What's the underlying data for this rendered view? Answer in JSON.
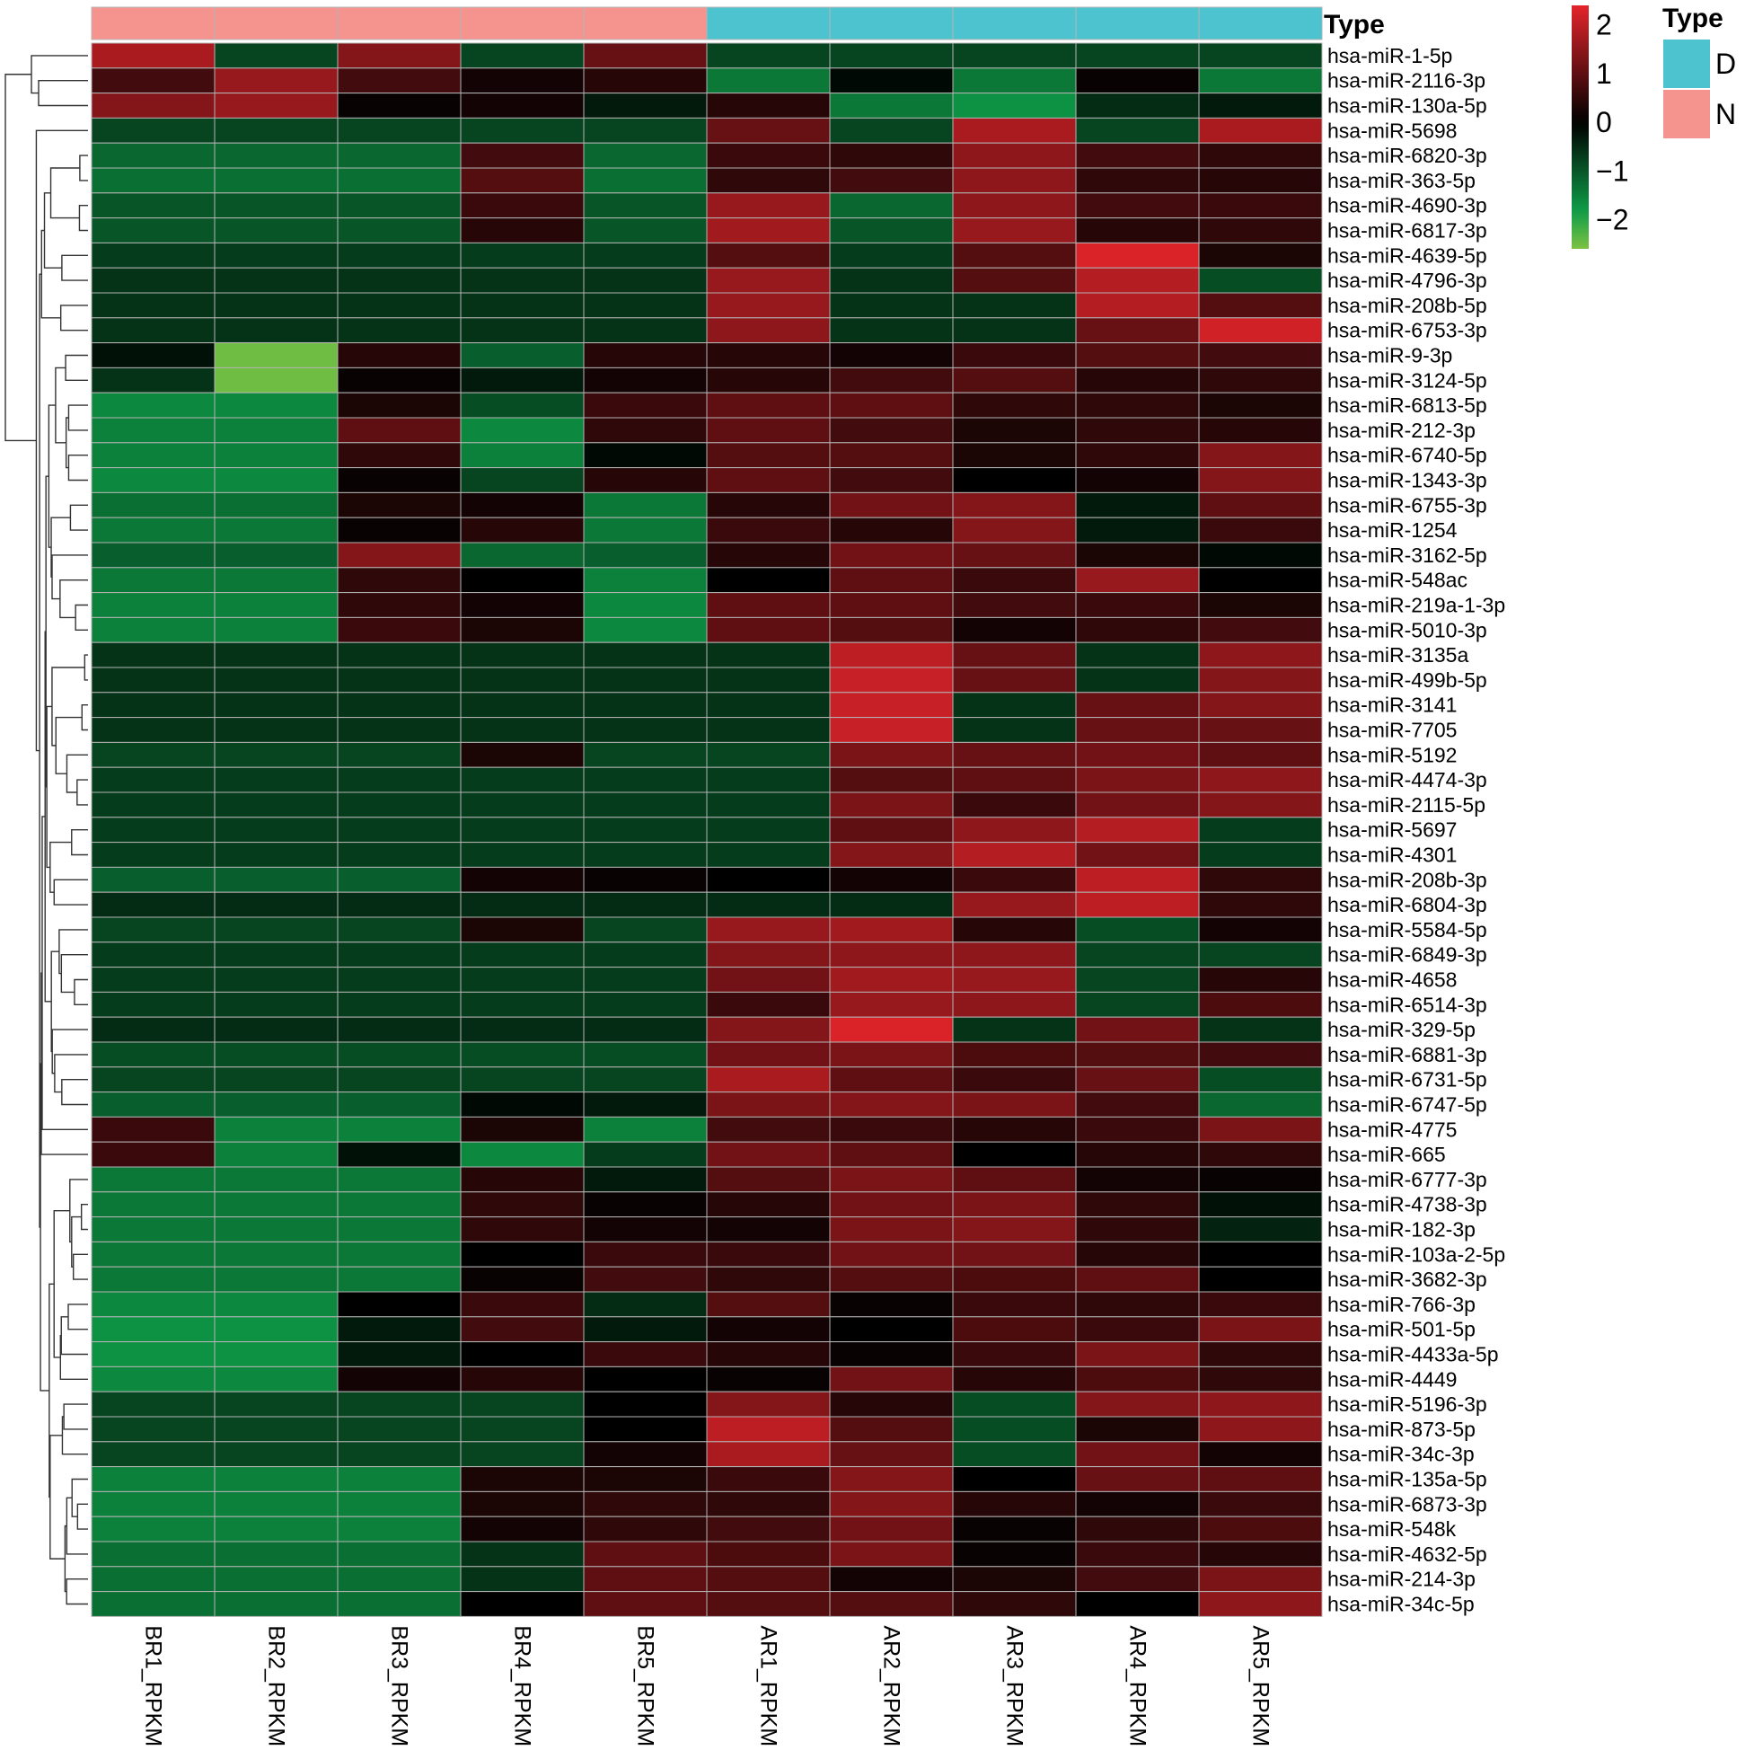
{
  "chart_data": {
    "type": "heatmap",
    "title": "",
    "columns": [
      "BR1_RPKM",
      "BR2_RPKM",
      "BR3_RPKM",
      "BR4_RPKM",
      "BR5_RPKM",
      "AR1_RPKM",
      "AR2_RPKM",
      "AR3_RPKM",
      "AR4_RPKM",
      "AR5_RPKM"
    ],
    "column_types": [
      "N",
      "N",
      "N",
      "N",
      "N",
      "D",
      "D",
      "D",
      "D",
      "D"
    ],
    "rows": [
      "hsa-miR-1-5p",
      "hsa-miR-2116-3p",
      "hsa-miR-130a-5p",
      "hsa-miR-5698",
      "hsa-miR-6820-3p",
      "hsa-miR-363-5p",
      "hsa-miR-4690-3p",
      "hsa-miR-6817-3p",
      "hsa-miR-4639-5p",
      "hsa-miR-4796-3p",
      "hsa-miR-208b-5p",
      "hsa-miR-6753-3p",
      "hsa-miR-9-3p",
      "hsa-miR-3124-5p",
      "hsa-miR-6813-5p",
      "hsa-miR-212-3p",
      "hsa-miR-6740-5p",
      "hsa-miR-1343-3p",
      "hsa-miR-6755-3p",
      "hsa-miR-1254",
      "hsa-miR-3162-5p",
      "hsa-miR-548ac",
      "hsa-miR-219a-1-3p",
      "hsa-miR-5010-3p",
      "hsa-miR-3135a",
      "hsa-miR-499b-5p",
      "hsa-miR-3141",
      "hsa-miR-7705",
      "hsa-miR-5192",
      "hsa-miR-4474-3p",
      "hsa-miR-2115-5p",
      "hsa-miR-5697",
      "hsa-miR-4301",
      "hsa-miR-208b-3p",
      "hsa-miR-6804-3p",
      "hsa-miR-5584-5p",
      "hsa-miR-6849-3p",
      "hsa-miR-4658",
      "hsa-miR-6514-3p",
      "hsa-miR-329-5p",
      "hsa-miR-6881-3p",
      "hsa-miR-6731-5p",
      "hsa-miR-6747-5p",
      "hsa-miR-4775",
      "hsa-miR-665",
      "hsa-miR-6777-3p",
      "hsa-miR-4738-3p",
      "hsa-miR-182-3p",
      "hsa-miR-103a-2-5p",
      "hsa-miR-3682-3p",
      "hsa-miR-766-3p",
      "hsa-miR-501-5p",
      "hsa-miR-4433a-5p",
      "hsa-miR-4449",
      "hsa-miR-5196-3p",
      "hsa-miR-873-5p",
      "hsa-miR-34c-3p",
      "hsa-miR-135a-5p",
      "hsa-miR-6873-3p",
      "hsa-miR-548k",
      "hsa-miR-4632-5p",
      "hsa-miR-214-3p",
      "hsa-miR-34c-5p"
    ],
    "values": [
      [
        1.8,
        -0.8,
        1.4,
        -0.8,
        1.1,
        -0.8,
        -0.8,
        -0.8,
        -0.8,
        -0.8
      ],
      [
        0.7,
        1.6,
        0.7,
        0.2,
        0.4,
        -1.4,
        -0.1,
        -1.4,
        0.1,
        -1.4
      ],
      [
        1.4,
        1.6,
        0.1,
        0.2,
        -0.3,
        0.4,
        -1.4,
        -1.7,
        -0.5,
        -0.3
      ],
      [
        -0.8,
        -0.8,
        -0.8,
        -0.8,
        -0.8,
        1.1,
        -0.8,
        1.8,
        -0.8,
        1.8
      ],
      [
        -1.2,
        -1.2,
        -1.2,
        0.7,
        -1.2,
        0.6,
        0.5,
        1.5,
        0.7,
        0.5
      ],
      [
        -1.3,
        -1.3,
        -1.3,
        0.9,
        -1.3,
        0.5,
        0.7,
        1.5,
        0.5,
        0.4
      ],
      [
        -1.0,
        -1.0,
        -1.0,
        0.6,
        -1.0,
        1.6,
        -1.2,
        1.5,
        0.7,
        0.6
      ],
      [
        -1.0,
        -1.0,
        -1.0,
        0.4,
        -1.0,
        1.7,
        -1.0,
        1.6,
        0.4,
        0.5
      ],
      [
        -0.7,
        -0.7,
        -0.7,
        -0.7,
        -0.7,
        0.9,
        -0.7,
        0.9,
        2.3,
        0.3
      ],
      [
        -0.6,
        -0.6,
        -0.6,
        -0.6,
        -0.6,
        1.6,
        -0.6,
        0.9,
        1.9,
        -0.9
      ],
      [
        -0.6,
        -0.6,
        -0.6,
        -0.6,
        -0.6,
        1.6,
        -0.6,
        -0.6,
        1.9,
        0.9
      ],
      [
        -0.6,
        -0.6,
        -0.6,
        -0.6,
        -0.6,
        1.5,
        -0.6,
        -0.6,
        1.1,
        2.2
      ],
      [
        -0.2,
        -2.5,
        0.4,
        -1.1,
        0.4,
        0.4,
        0.2,
        0.6,
        0.9,
        0.7
      ],
      [
        -0.6,
        -2.5,
        0.1,
        -0.3,
        0.2,
        0.4,
        0.7,
        0.9,
        0.4,
        0.5
      ],
      [
        -1.6,
        -1.6,
        0.3,
        -0.9,
        0.6,
        1.0,
        1.0,
        0.5,
        0.5,
        0.3
      ],
      [
        -1.5,
        -1.5,
        1.0,
        -1.6,
        0.5,
        1.0,
        0.7,
        0.3,
        0.5,
        0.4
      ],
      [
        -1.5,
        -1.5,
        0.5,
        -1.5,
        -0.1,
        0.9,
        0.9,
        0.3,
        0.5,
        1.4
      ],
      [
        -1.6,
        -1.6,
        0.1,
        -0.8,
        0.4,
        1.0,
        0.7,
        0.0,
        0.2,
        1.4
      ],
      [
        -1.3,
        -1.3,
        0.3,
        0.2,
        -1.4,
        0.4,
        1.2,
        1.4,
        -0.3,
        1.0
      ],
      [
        -1.4,
        -1.4,
        0.1,
        0.4,
        -1.4,
        0.6,
        0.4,
        1.4,
        -0.3,
        0.6
      ],
      [
        -1.1,
        -1.1,
        1.4,
        -1.2,
        -1.1,
        0.4,
        1.2,
        1.1,
        0.3,
        -0.1
      ],
      [
        -1.4,
        -1.4,
        0.5,
        0.0,
        -1.5,
        0.0,
        1.0,
        0.6,
        1.6,
        0.0
      ],
      [
        -1.5,
        -1.5,
        0.5,
        0.2,
        -1.6,
        1.0,
        1.0,
        0.7,
        0.6,
        0.3
      ],
      [
        -1.5,
        -1.5,
        0.6,
        0.3,
        -1.6,
        1.0,
        0.9,
        0.2,
        0.5,
        0.7
      ],
      [
        -0.6,
        -0.6,
        -0.6,
        -0.6,
        -0.6,
        -0.6,
        2.0,
        1.1,
        -0.6,
        1.5
      ],
      [
        -0.6,
        -0.6,
        -0.6,
        -0.6,
        -0.6,
        -0.6,
        2.1,
        1.1,
        -0.6,
        1.4
      ],
      [
        -0.6,
        -0.6,
        -0.6,
        -0.6,
        -0.6,
        -0.6,
        2.1,
        -0.6,
        1.1,
        1.4
      ],
      [
        -0.6,
        -0.6,
        -0.6,
        -0.6,
        -0.6,
        -0.6,
        2.1,
        -0.6,
        1.1,
        1.1
      ],
      [
        -0.8,
        -0.8,
        -0.8,
        0.3,
        -0.8,
        -0.8,
        1.3,
        1.1,
        1.2,
        1.0
      ],
      [
        -0.7,
        -0.7,
        -0.7,
        -0.7,
        -0.7,
        -0.7,
        0.9,
        1.0,
        1.3,
        1.5
      ],
      [
        -0.7,
        -0.7,
        -0.7,
        -0.7,
        -0.7,
        -0.7,
        1.3,
        0.6,
        1.2,
        1.4
      ],
      [
        -0.7,
        -0.7,
        -0.7,
        -0.7,
        -0.7,
        -0.7,
        1.0,
        1.5,
        1.9,
        -0.7
      ],
      [
        -0.7,
        -0.7,
        -0.7,
        -0.7,
        -0.7,
        -0.7,
        1.4,
        1.9,
        1.2,
        -0.7
      ],
      [
        -1.1,
        -1.1,
        -1.1,
        0.2,
        0.1,
        0.0,
        0.2,
        0.6,
        2.0,
        0.5
      ],
      [
        -0.5,
        -0.5,
        -0.5,
        -0.5,
        -0.5,
        -0.5,
        -0.5,
        1.6,
        2.0,
        0.5
      ],
      [
        -0.8,
        -0.8,
        -0.8,
        0.3,
        -0.8,
        1.6,
        1.7,
        0.4,
        -0.9,
        0.2
      ],
      [
        -0.7,
        -0.7,
        -0.7,
        -0.7,
        -0.7,
        1.4,
        1.5,
        1.5,
        -0.8,
        -0.8
      ],
      [
        -0.7,
        -0.7,
        -0.7,
        -0.7,
        -0.7,
        1.2,
        1.7,
        1.6,
        -0.8,
        0.4
      ],
      [
        -0.7,
        -0.7,
        -0.7,
        -0.7,
        -0.7,
        0.6,
        1.6,
        1.5,
        -0.8,
        0.8
      ],
      [
        -0.5,
        -0.5,
        -0.5,
        -0.5,
        -0.5,
        1.4,
        2.3,
        -0.6,
        1.2,
        -0.6
      ],
      [
        -0.9,
        -0.9,
        -0.9,
        -0.9,
        -0.9,
        1.2,
        1.3,
        0.8,
        0.9,
        0.7
      ],
      [
        -0.8,
        -0.8,
        -0.8,
        -0.8,
        -0.8,
        1.8,
        1.0,
        0.6,
        1.1,
        -0.9
      ],
      [
        -1.1,
        -1.1,
        -1.1,
        -0.1,
        -0.3,
        1.3,
        1.4,
        1.3,
        0.7,
        -1.2
      ],
      [
        0.6,
        -1.5,
        -1.5,
        0.3,
        -1.5,
        0.7,
        0.6,
        0.4,
        0.6,
        1.3
      ],
      [
        0.6,
        -1.5,
        -0.2,
        -1.6,
        -0.7,
        1.2,
        1.0,
        0.0,
        0.4,
        0.5
      ],
      [
        -1.4,
        -1.4,
        -1.4,
        0.4,
        -0.3,
        0.9,
        1.3,
        1.0,
        0.2,
        0.1
      ],
      [
        -1.4,
        -1.4,
        -1.4,
        0.5,
        0.1,
        0.4,
        1.2,
        1.3,
        0.5,
        -0.2
      ],
      [
        -1.4,
        -1.4,
        -1.4,
        0.5,
        0.2,
        0.2,
        1.3,
        1.4,
        0.5,
        -0.4
      ],
      [
        -1.4,
        -1.4,
        -1.4,
        0.0,
        0.6,
        0.6,
        1.2,
        1.2,
        0.4,
        0.0
      ],
      [
        -1.4,
        -1.4,
        -1.4,
        0.1,
        0.7,
        0.5,
        0.9,
        0.8,
        1.0,
        0.0
      ],
      [
        -1.6,
        -1.6,
        0.0,
        0.6,
        -0.5,
        0.9,
        0.1,
        0.6,
        0.5,
        0.6
      ],
      [
        -1.7,
        -1.7,
        -0.3,
        0.7,
        -0.3,
        0.2,
        0.0,
        0.8,
        0.6,
        1.3
      ],
      [
        -1.7,
        -1.7,
        -0.3,
        0.0,
        0.6,
        0.4,
        0.1,
        0.6,
        1.3,
        0.5
      ],
      [
        -1.6,
        -1.6,
        0.2,
        0.4,
        0.0,
        0.1,
        1.2,
        0.4,
        0.8,
        0.5
      ],
      [
        -0.8,
        -0.8,
        -0.8,
        -0.8,
        0.0,
        1.4,
        0.4,
        -0.9,
        1.4,
        1.5
      ],
      [
        -0.8,
        -0.8,
        -0.8,
        -0.8,
        0.0,
        2.0,
        0.9,
        -0.9,
        0.3,
        1.5
      ],
      [
        -0.8,
        -0.8,
        -0.8,
        -0.8,
        0.2,
        1.8,
        1.1,
        -0.9,
        1.2,
        0.2
      ],
      [
        -1.5,
        -1.5,
        -1.5,
        0.3,
        0.3,
        0.6,
        1.4,
        0.0,
        1.1,
        1.0
      ],
      [
        -1.5,
        -1.5,
        -1.5,
        0.3,
        0.5,
        0.5,
        1.4,
        0.4,
        0.2,
        0.6
      ],
      [
        -1.5,
        -1.5,
        -1.5,
        0.2,
        0.5,
        0.7,
        1.2,
        0.1,
        0.5,
        0.8
      ],
      [
        -1.3,
        -1.3,
        -1.3,
        -0.6,
        1.0,
        0.8,
        1.3,
        0.1,
        0.6,
        0.4
      ],
      [
        -1.3,
        -1.3,
        -1.3,
        -0.6,
        1.0,
        0.9,
        0.2,
        0.3,
        0.7,
        1.3
      ],
      [
        -1.3,
        -1.3,
        -1.3,
        0.0,
        1.0,
        0.9,
        0.9,
        0.5,
        0.0,
        1.5
      ]
    ],
    "column_annotation": {
      "title": "Type",
      "legend": [
        {
          "label": "D",
          "color": "#4cc3cf"
        },
        {
          "label": "N",
          "color": "#f5938f"
        }
      ]
    },
    "color_scale": {
      "ticks": [
        2,
        1,
        0,
        -1,
        -2
      ],
      "tick_labels": [
        "2",
        "1",
        "0",
        "−1",
        "−2"
      ],
      "range": [
        -2.6,
        2.4
      ],
      "low_color": "#7dc242",
      "mid_low_color": "#0e9c48",
      "zero_color": "#000000",
      "high_color": "#e3242b"
    },
    "row_dendrogram": true
  },
  "colors": {
    "grid_line": "#b4b4b4",
    "text": "#000000"
  }
}
